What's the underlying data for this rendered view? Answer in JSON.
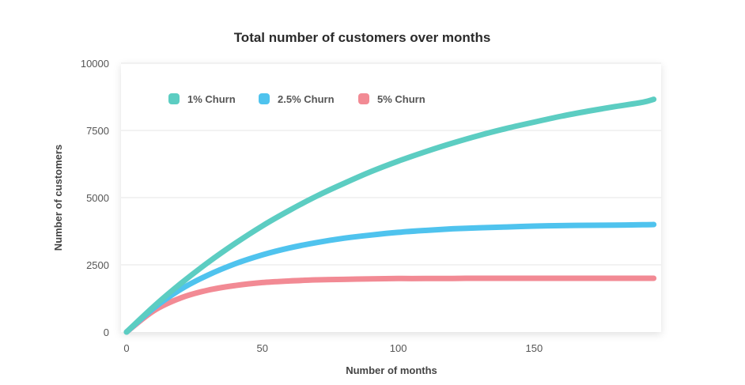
{
  "chart_data": {
    "type": "line",
    "title": "Total number of customers over months",
    "xlabel": "Number of months",
    "ylabel": "Number of customers",
    "xlim": [
      0,
      195
    ],
    "ylim": [
      0,
      10000
    ],
    "x_ticks": [
      "0",
      "50",
      "100",
      "150"
    ],
    "y_ticks": [
      "0",
      "2500",
      "5000",
      "7500",
      "10000"
    ],
    "grid": "horizontal",
    "legend_position": "top-left",
    "x": [
      0,
      10,
      20,
      30,
      40,
      50,
      60,
      70,
      80,
      90,
      100,
      110,
      120,
      130,
      140,
      150,
      160,
      170,
      180,
      190,
      194
    ],
    "series": [
      {
        "name": "1% Churn",
        "color": "#5ccdc2",
        "values": [
          0,
          950,
          1810,
          2590,
          3300,
          3950,
          4530,
          5060,
          5530,
          5970,
          6360,
          6710,
          7030,
          7320,
          7580,
          7810,
          8030,
          8220,
          8390,
          8550,
          8660
        ]
      },
      {
        "name": "2.5% Churn",
        "color": "#4fc3ee",
        "values": [
          0,
          890,
          1590,
          2120,
          2540,
          2870,
          3130,
          3330,
          3490,
          3610,
          3710,
          3780,
          3840,
          3880,
          3910,
          3940,
          3960,
          3970,
          3980,
          3990,
          4000
        ]
      },
      {
        "name": "5% Churn",
        "color": "#f28a94",
        "values": [
          0,
          790,
          1270,
          1560,
          1730,
          1840,
          1900,
          1940,
          1960,
          1980,
          1990,
          1990,
          1995,
          2000,
          2000,
          2000,
          2000,
          2000,
          2000,
          2000,
          2000
        ]
      }
    ]
  }
}
